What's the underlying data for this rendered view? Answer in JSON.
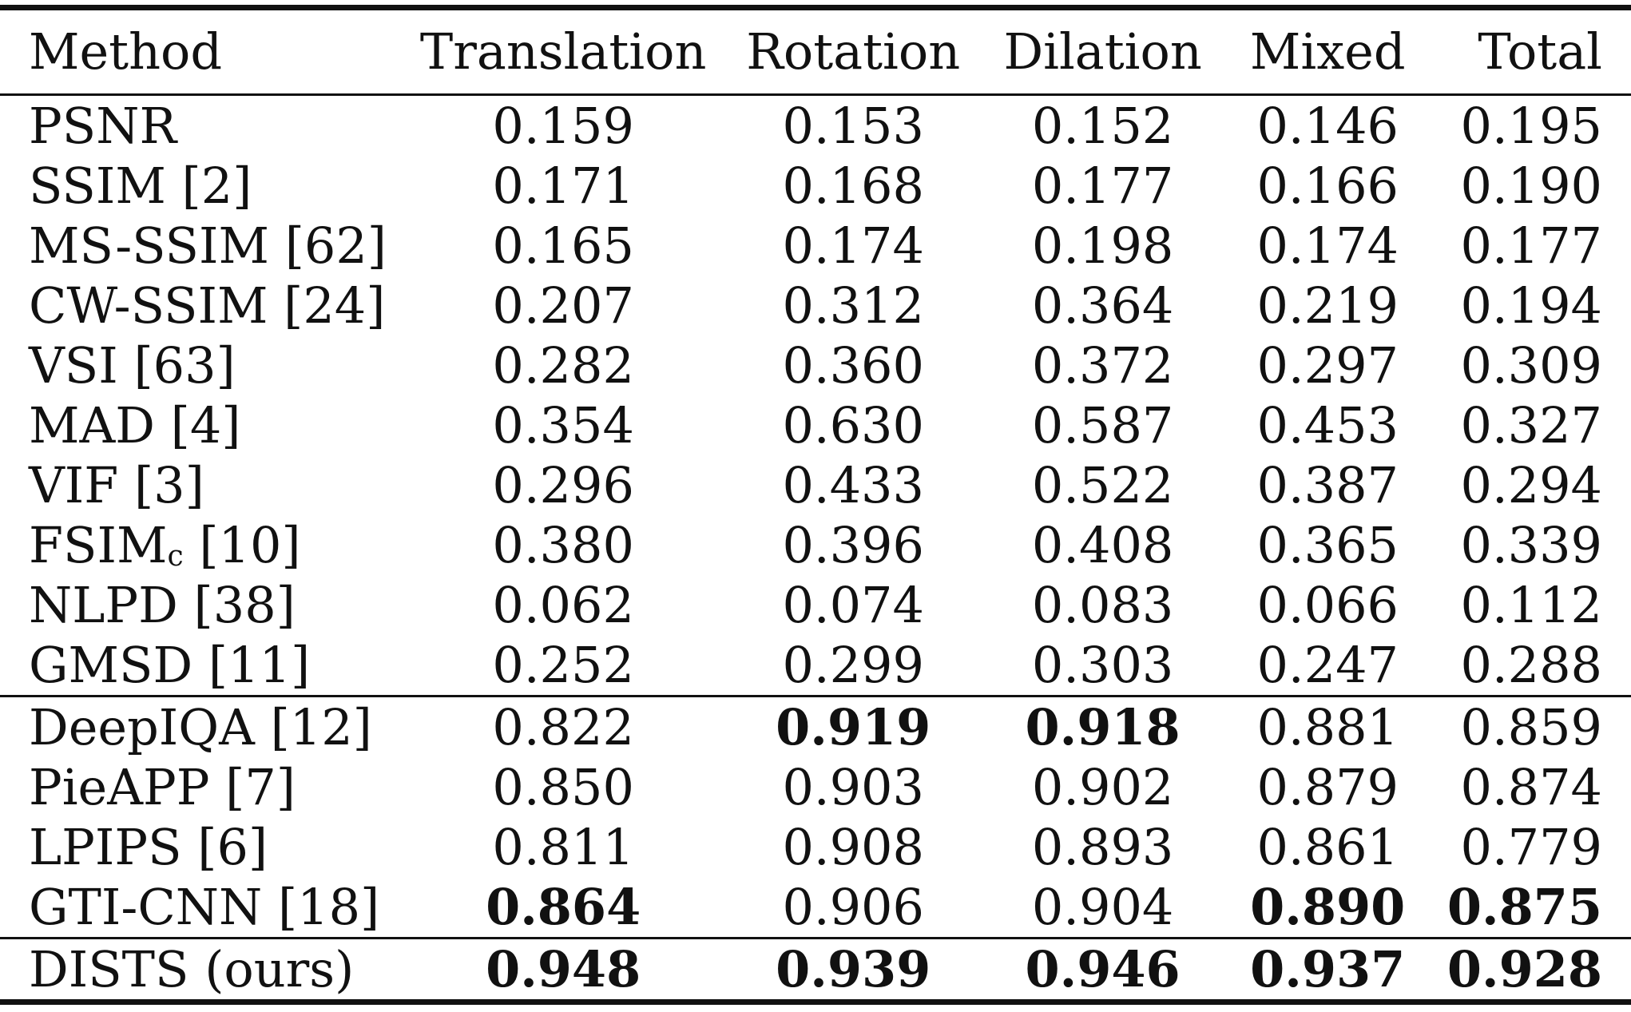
{
  "columns": [
    "Method",
    "Translation",
    "Rotation",
    "Dilation",
    "Mixed",
    "Total"
  ],
  "rows": [
    {
      "method": "PSNR",
      "vals": [
        "0.159",
        "0.153",
        "0.152",
        "0.146",
        "0.195"
      ],
      "bold": []
    },
    {
      "method": "SSIM [2]",
      "vals": [
        "0.171",
        "0.168",
        "0.177",
        "0.166",
        "0.190"
      ],
      "bold": []
    },
    {
      "method": "MS-SSIM [62]",
      "vals": [
        "0.165",
        "0.174",
        "0.198",
        "0.174",
        "0.177"
      ],
      "bold": []
    },
    {
      "method": "CW-SSIM [24]",
      "vals": [
        "0.207",
        "0.312",
        "0.364",
        "0.219",
        "0.194"
      ],
      "bold": []
    },
    {
      "method": "VSI [63]",
      "vals": [
        "0.282",
        "0.360",
        "0.372",
        "0.297",
        "0.309"
      ],
      "bold": []
    },
    {
      "method": "MAD [4]",
      "vals": [
        "0.354",
        "0.630",
        "0.587",
        "0.453",
        "0.327"
      ],
      "bold": []
    },
    {
      "method": "VIF [3]",
      "vals": [
        "0.296",
        "0.433",
        "0.522",
        "0.387",
        "0.294"
      ],
      "bold": []
    },
    {
      "method": "FSIM",
      "method_sub": "c",
      "method_ref": " [10]",
      "vals": [
        "0.380",
        "0.396",
        "0.408",
        "0.365",
        "0.339"
      ],
      "bold": []
    },
    {
      "method": "NLPD [38]",
      "vals": [
        "0.062",
        "0.074",
        "0.083",
        "0.066",
        "0.112"
      ],
      "bold": []
    },
    {
      "method": "GMSD [11]",
      "vals": [
        "0.252",
        "0.299",
        "0.303",
        "0.247",
        "0.288"
      ],
      "bold": []
    },
    {
      "method": "DeepIQA [12]",
      "vals": [
        "0.822",
        "0.919",
        "0.918",
        "0.881",
        "0.859"
      ],
      "bold": [
        1,
        2
      ],
      "sep": true
    },
    {
      "method": "PieAPP [7]",
      "vals": [
        "0.850",
        "0.903",
        "0.902",
        "0.879",
        "0.874"
      ],
      "bold": []
    },
    {
      "method": "LPIPS [6]",
      "vals": [
        "0.811",
        "0.908",
        "0.893",
        "0.861",
        "0.779"
      ],
      "bold": []
    },
    {
      "method": "GTI-CNN [18]",
      "vals": [
        "0.864",
        "0.906",
        "0.904",
        "0.890",
        "0.875"
      ],
      "bold": [
        0,
        3,
        4
      ]
    },
    {
      "method": "DISTS (ours)",
      "vals": [
        "0.948",
        "0.939",
        "0.946",
        "0.937",
        "0.928"
      ],
      "bold": [
        0,
        1,
        2,
        3,
        4
      ],
      "sep": true
    }
  ]
}
